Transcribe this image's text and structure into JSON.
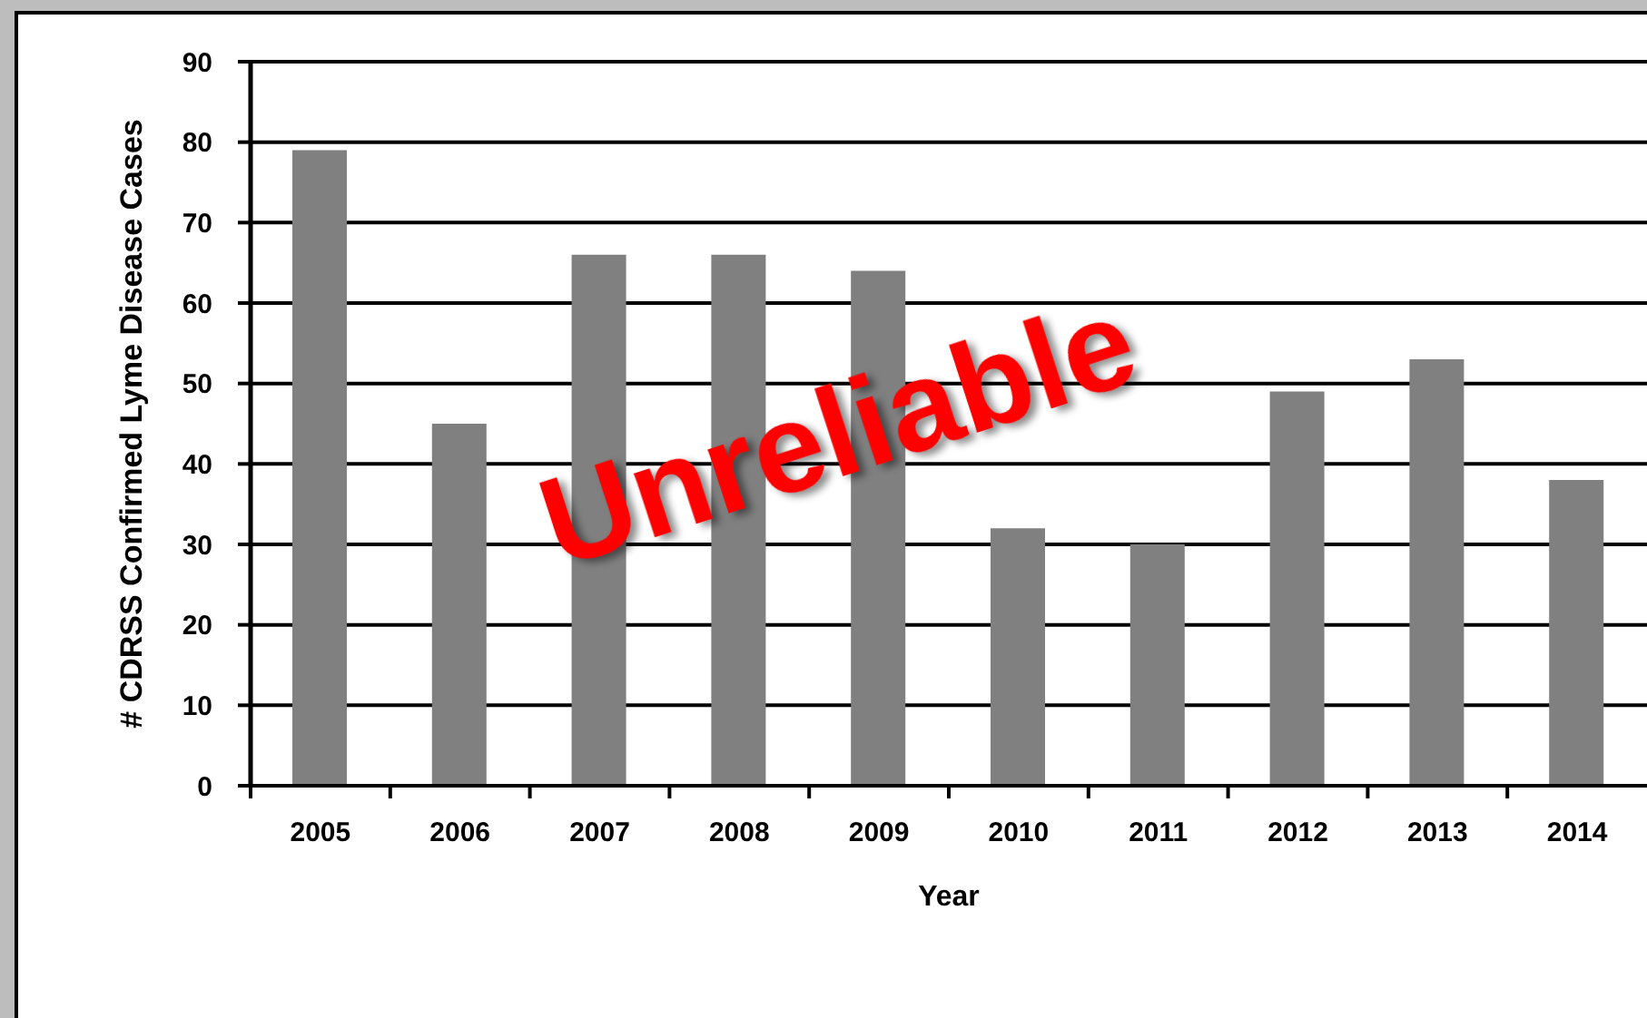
{
  "chart_data": {
    "type": "bar",
    "categories": [
      "2005",
      "2006",
      "2007",
      "2008",
      "2009",
      "2010",
      "2011",
      "2012",
      "2013",
      "2014"
    ],
    "values": [
      79,
      45,
      66,
      66,
      64,
      32,
      30,
      49,
      53,
      38
    ],
    "color": "#808080",
    "xlabel": "Year",
    "ylabel": "# CDRSS Confirmed Lyme Disease Cases",
    "ylim": [
      0,
      90
    ],
    "yticks": [
      0,
      10,
      20,
      30,
      40,
      50,
      60,
      70,
      80,
      90
    ],
    "grid": "y",
    "annotations": [
      "Unreliable"
    ]
  }
}
